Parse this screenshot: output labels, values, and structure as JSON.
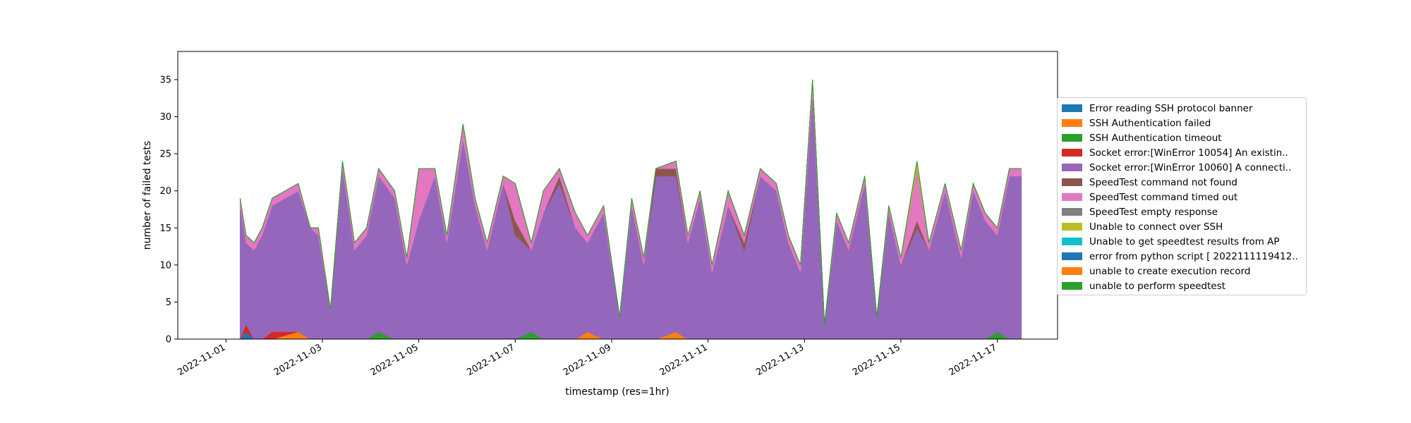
{
  "chart_data": {
    "type": "area",
    "stacked": true,
    "title": "",
    "xlabel": "timestamp (res=1hr)",
    "ylabel": "number of failed tests",
    "xlim": [
      "2022-10-31T00:00",
      "2022-11-18T06:00"
    ],
    "ylim": [
      0,
      38.8
    ],
    "x_ticks": [
      "2022-11-01",
      "2022-11-03",
      "2022-11-05",
      "2022-11-07",
      "2022-11-09",
      "2022-11-11",
      "2022-11-13",
      "2022-11-15",
      "2022-11-17"
    ],
    "y_ticks": [
      0,
      5,
      10,
      15,
      20,
      25,
      30,
      35
    ],
    "grid": false,
    "legend_position": "right",
    "x": [
      "2022-11-01T07:00",
      "2022-11-01T10:00",
      "2022-11-01T14:00",
      "2022-11-01T18:00",
      "2022-11-01T23:00",
      "2022-11-02T12:00",
      "2022-11-02T18:00",
      "2022-11-02T22:00",
      "2022-11-03T04:00",
      "2022-11-03T10:00",
      "2022-11-03T16:00",
      "2022-11-03T22:00",
      "2022-11-04T04:00",
      "2022-11-04T12:00",
      "2022-11-04T18:00",
      "2022-11-05T00:00",
      "2022-11-05T08:00",
      "2022-11-05T14:00",
      "2022-11-05T22:00",
      "2022-11-06T04:00",
      "2022-11-06T10:00",
      "2022-11-06T18:00",
      "2022-11-07T00:00",
      "2022-11-07T08:00",
      "2022-11-07T14:00",
      "2022-11-07T22:00",
      "2022-11-08T06:00",
      "2022-11-08T12:00",
      "2022-11-08T20:00",
      "2022-11-09T04:00",
      "2022-11-09T10:00",
      "2022-11-09T16:00",
      "2022-11-09T22:00",
      "2022-11-10T08:00",
      "2022-11-10T14:00",
      "2022-11-10T20:00",
      "2022-11-11T02:00",
      "2022-11-11T10:00",
      "2022-11-11T18:00",
      "2022-11-12T02:00",
      "2022-11-12T10:00",
      "2022-11-12T16:00",
      "2022-11-12T22:00",
      "2022-11-13T04:00",
      "2022-11-13T10:00",
      "2022-11-13T16:00",
      "2022-11-13T22:00",
      "2022-11-14T06:00",
      "2022-11-14T12:00",
      "2022-11-14T18:00",
      "2022-11-15T00:00",
      "2022-11-15T08:00",
      "2022-11-15T14:00",
      "2022-11-15T22:00",
      "2022-11-16T06:00",
      "2022-11-16T12:00",
      "2022-11-16T18:00",
      "2022-11-17T00:00",
      "2022-11-17T06:00",
      "2022-11-17T12:00"
    ],
    "series": [
      {
        "name": "Error reading SSH protocol banner",
        "color": "#1f77b4",
        "values": [
          0,
          1,
          0,
          0,
          0,
          0,
          0,
          0,
          0,
          0,
          0,
          0,
          0,
          0,
          0,
          0,
          0,
          0,
          0,
          0,
          0,
          0,
          0,
          0,
          0,
          0,
          0,
          0,
          0,
          0,
          0,
          0,
          0,
          0,
          0,
          0,
          0,
          0,
          0,
          0,
          0,
          0,
          0,
          0,
          0,
          0,
          0,
          0,
          0,
          0,
          0,
          0,
          0,
          0,
          0,
          0,
          0,
          0,
          0,
          0
        ]
      },
      {
        "name": "SSH Authentication failed",
        "color": "#ff7f0e",
        "values": [
          0,
          0,
          0,
          0,
          0,
          1,
          0,
          0,
          0,
          0,
          0,
          0,
          0,
          0,
          0,
          0,
          0,
          0,
          0,
          0,
          0,
          0,
          0,
          0,
          0,
          0,
          0,
          1,
          0,
          0,
          0,
          0,
          0,
          1,
          0,
          0,
          0,
          0,
          0,
          0,
          0,
          0,
          0,
          0,
          0,
          0,
          0,
          0,
          0,
          0,
          0,
          0,
          0,
          0,
          0,
          0,
          0,
          0,
          0,
          0
        ]
      },
      {
        "name": "SSH Authentication timeout",
        "color": "#2ca02c",
        "values": [
          0,
          0,
          0,
          0,
          0,
          0,
          0,
          0,
          0,
          0,
          0,
          0,
          1,
          0,
          0,
          0,
          0,
          0,
          0,
          0,
          0,
          0,
          0,
          1,
          0,
          0,
          0,
          0,
          0,
          0,
          0,
          0,
          0,
          0,
          0,
          0,
          0,
          0,
          0,
          0,
          0,
          0,
          0,
          0,
          0,
          0,
          0,
          0,
          0,
          0,
          0,
          0,
          0,
          0,
          0,
          0,
          0,
          1,
          0,
          0
        ]
      },
      {
        "name": "Socket error:[WinError 10054] An existin..",
        "color": "#d62728",
        "values": [
          0,
          1,
          0,
          0,
          1,
          0,
          0,
          0,
          0,
          0,
          0,
          0,
          0,
          0,
          0,
          0,
          0,
          0,
          0,
          0,
          0,
          0,
          0,
          0,
          0,
          0,
          0,
          0,
          0,
          0,
          0,
          0,
          0,
          0,
          0,
          0,
          0,
          0,
          0,
          0,
          0,
          0,
          0,
          0,
          0,
          0,
          0,
          0,
          0,
          0,
          0,
          0,
          0,
          0,
          0,
          0,
          0,
          0,
          0,
          0
        ]
      },
      {
        "name": "Socket error:[WinError 10060] A connecti..",
        "color": "#9467bd",
        "values": [
          18,
          11,
          12,
          14,
          17,
          19,
          15,
          14,
          4,
          23,
          12,
          14,
          21,
          19,
          10,
          16,
          22,
          13,
          27,
          18,
          12,
          21,
          14,
          11,
          17,
          21,
          15,
          12,
          17,
          3,
          18,
          10,
          22,
          21,
          13,
          19,
          9,
          18,
          12,
          22,
          20,
          13,
          9,
          33,
          2,
          16,
          12,
          21,
          3,
          17,
          10,
          15,
          12,
          20,
          11,
          20,
          16,
          13,
          22,
          22
        ]
      },
      {
        "name": "SpeedTest command not found",
        "color": "#8c564b",
        "values": [
          0,
          0,
          0,
          0,
          0,
          0,
          0,
          0,
          0,
          0,
          0,
          0,
          0,
          0,
          0,
          0,
          0,
          0,
          0,
          0,
          0,
          0,
          2,
          0,
          0,
          1,
          0,
          0,
          0,
          0,
          0,
          0,
          1,
          1,
          0,
          0,
          0,
          0,
          1,
          0,
          0,
          0,
          0,
          0,
          0,
          0,
          0,
          0,
          0,
          0,
          0,
          1,
          0,
          0,
          0,
          0,
          0,
          0,
          0,
          0
        ]
      },
      {
        "name": "SpeedTest command timed out",
        "color": "#e377c2",
        "values": [
          1,
          1,
          1,
          1,
          1,
          1,
          0,
          1,
          0,
          1,
          1,
          1,
          1,
          1,
          1,
          7,
          1,
          1,
          2,
          1,
          1,
          1,
          5,
          1,
          3,
          1,
          2,
          1,
          1,
          0,
          1,
          1,
          0,
          1,
          1,
          1,
          1,
          2,
          1,
          1,
          1,
          1,
          1,
          2,
          0,
          1,
          1,
          1,
          0,
          1,
          1,
          7,
          1,
          1,
          1,
          1,
          1,
          1,
          1,
          1
        ]
      },
      {
        "name": "SpeedTest empty response",
        "color": "#7f7f7f",
        "values": [
          0,
          0,
          0,
          0,
          0,
          0,
          0,
          0,
          0,
          0,
          0,
          0,
          0,
          0,
          0,
          0,
          0,
          0,
          0,
          0,
          0,
          0,
          0,
          0,
          0,
          0,
          0,
          0,
          0,
          0,
          0,
          0,
          0,
          0,
          0,
          0,
          0,
          0,
          0,
          0,
          0,
          0,
          0,
          0,
          0,
          0,
          0,
          0,
          0,
          0,
          0,
          0,
          0,
          0,
          0,
          0,
          0,
          0,
          0,
          0
        ]
      },
      {
        "name": "Unable to connect over SSH",
        "color": "#bcbd22",
        "values": [
          0,
          0,
          0,
          0,
          0,
          0,
          0,
          0,
          0,
          0,
          0,
          0,
          0,
          0,
          0,
          0,
          0,
          0,
          0,
          0,
          0,
          0,
          0,
          0,
          0,
          0,
          0,
          0,
          0,
          0,
          0,
          0,
          0,
          0,
          0,
          0,
          0,
          0,
          0,
          0,
          0,
          0,
          0,
          0,
          0,
          0,
          0,
          0,
          0,
          0,
          0,
          1,
          0,
          0,
          0,
          0,
          0,
          0,
          0,
          0
        ]
      },
      {
        "name": "Unable to get speedtest results from AP",
        "color": "#17becf",
        "values": [
          0,
          0,
          0,
          0,
          0,
          0,
          0,
          0,
          0,
          0,
          0,
          0,
          0,
          0,
          0,
          0,
          0,
          0,
          0,
          0,
          0,
          0,
          0,
          0,
          0,
          0,
          0,
          0,
          0,
          0,
          0,
          0,
          0,
          0,
          0,
          0,
          0,
          0,
          0,
          0,
          0,
          0,
          0,
          0,
          0,
          0,
          0,
          0,
          0,
          0,
          0,
          0,
          0,
          0,
          0,
          0,
          0,
          0,
          0,
          0
        ]
      },
      {
        "name": "error from python script [ 2022111119412..",
        "color": "#1f77b4",
        "values": [
          0,
          0,
          0,
          0,
          0,
          0,
          0,
          0,
          0,
          0,
          0,
          0,
          0,
          0,
          0,
          0,
          0,
          0,
          0,
          0,
          0,
          0,
          0,
          0,
          0,
          0,
          0,
          0,
          0,
          0,
          0,
          0,
          0,
          0,
          0,
          0,
          0,
          0,
          0,
          0,
          0,
          0,
          0,
          0,
          0,
          0,
          0,
          0,
          0,
          0,
          0,
          0,
          0,
          0,
          0,
          0,
          0,
          0,
          0,
          0
        ]
      },
      {
        "name": "unable to create execution record",
        "color": "#ff7f0e",
        "values": [
          0,
          0,
          0,
          0,
          0,
          0,
          0,
          0,
          0,
          0,
          0,
          0,
          0,
          0,
          0,
          0,
          0,
          0,
          0,
          0,
          0,
          0,
          0,
          0,
          0,
          0,
          0,
          0,
          0,
          0,
          0,
          0,
          0,
          0,
          0,
          0,
          0,
          0,
          0,
          0,
          0,
          0,
          0,
          0,
          0,
          0,
          0,
          0,
          0,
          0,
          0,
          0,
          0,
          0,
          0,
          0,
          0,
          0,
          0,
          0
        ]
      },
      {
        "name": "unable to perform speedtest",
        "color": "#2ca02c",
        "values": [
          0,
          0,
          0,
          0,
          0,
          0,
          0,
          0,
          0,
          0,
          0,
          0,
          0,
          0,
          0,
          0,
          0,
          0,
          0,
          0,
          0,
          0,
          0,
          0,
          0,
          0,
          0,
          0,
          0,
          0,
          0,
          0,
          0,
          0,
          0,
          0,
          0,
          0,
          0,
          0,
          0,
          0,
          0,
          0,
          0,
          0,
          0,
          0,
          0,
          0,
          0,
          0,
          0,
          0,
          0,
          0,
          0,
          0,
          0,
          0
        ]
      }
    ]
  }
}
